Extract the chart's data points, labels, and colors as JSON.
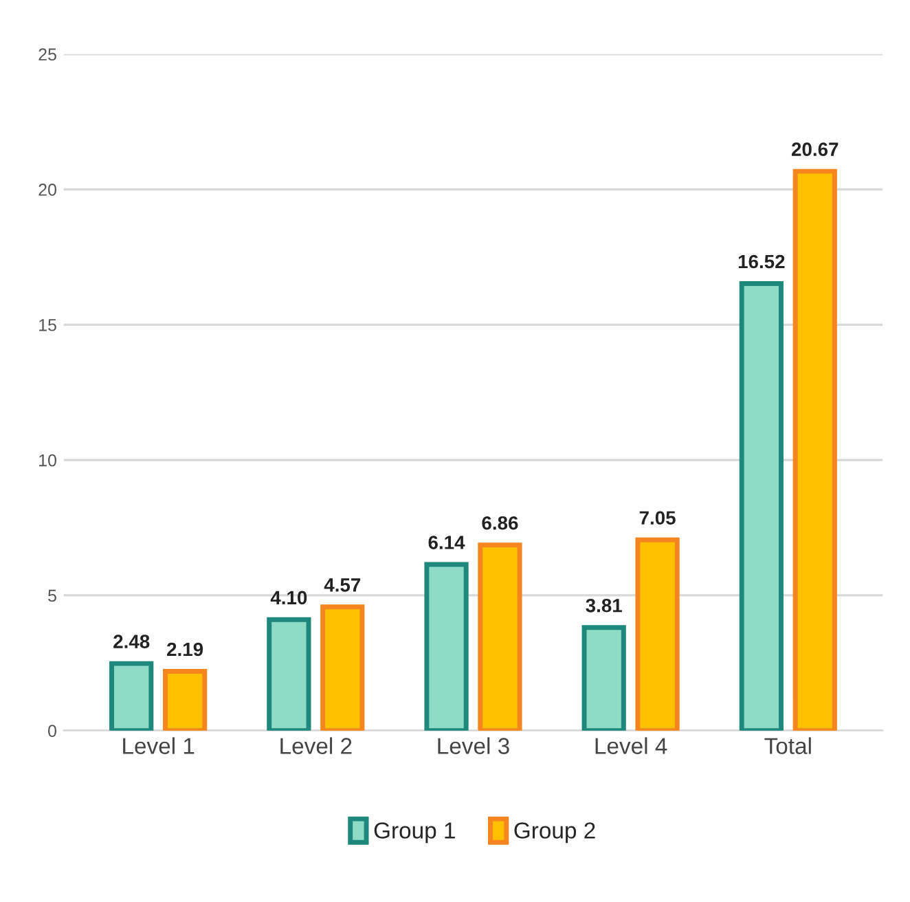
{
  "chart_data": {
    "type": "bar",
    "categories": [
      "Level 1",
      "Level 2",
      "Level 3",
      "Level 4",
      "Total"
    ],
    "series": [
      {
        "name": "Group 1",
        "color": "#8fdcc6",
        "values": [
          2.48,
          4.1,
          6.14,
          3.81,
          16.52
        ],
        "value_labels": [
          "2.48",
          "4.10",
          "6.14",
          "3.81",
          "16.52"
        ]
      },
      {
        "name": "Group 2",
        "color": "#ffc000",
        "values": [
          2.19,
          4.57,
          6.86,
          7.05,
          20.67
        ],
        "value_labels": [
          "2.19",
          "4.57",
          "6.86",
          "7.05",
          "20.67"
        ]
      }
    ],
    "ylim": [
      0,
      25
    ],
    "yticks": [
      0,
      5,
      10,
      15,
      20,
      25
    ],
    "grid": "y",
    "legend": "bottom"
  }
}
